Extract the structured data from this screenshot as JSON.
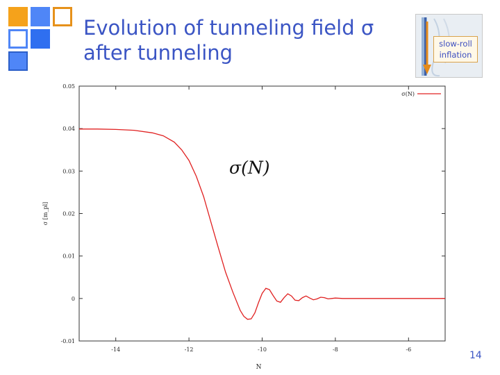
{
  "slide": {
    "title_line1": "Evolution of tunneling field σ",
    "title_line2": "after tunneling",
    "page_number": "14",
    "accent_colors": [
      "#f5a21b",
      "#4f86f7",
      "#2f6ff0",
      "#e6911a"
    ]
  },
  "thumbnail": {
    "label_line1": "slow-roll",
    "label_line2": "inflation",
    "icons": [
      "down-arrow-icon"
    ]
  },
  "chart_data": {
    "type": "line",
    "title": "",
    "annotation": "σ(N)",
    "xlabel": "N",
    "ylabel": "σ [m_pl]",
    "xlim": [
      -15,
      -5
    ],
    "ylim": [
      -0.01,
      0.05
    ],
    "xticks": [
      -14,
      -12,
      -10,
      -8,
      -6
    ],
    "yticks": [
      -0.01,
      0,
      0.01,
      0.02,
      0.03,
      0.04,
      0.05
    ],
    "ytick_labels": [
      "-0.01",
      "0",
      "0.01",
      "0.02",
      "0.03",
      "0.04",
      "0.05"
    ],
    "grid": false,
    "legend": "top-right",
    "series": [
      {
        "name": "σ(N)",
        "color": "#e02020",
        "x": [
          -15.0,
          -14.5,
          -14.0,
          -13.5,
          -13.0,
          -12.7,
          -12.4,
          -12.2,
          -12.0,
          -11.8,
          -11.6,
          -11.4,
          -11.2,
          -11.0,
          -10.8,
          -10.6,
          -10.5,
          -10.4,
          -10.3,
          -10.2,
          -10.1,
          -10.0,
          -9.9,
          -9.8,
          -9.7,
          -9.6,
          -9.5,
          -9.4,
          -9.3,
          -9.2,
          -9.1,
          -9.0,
          -8.9,
          -8.8,
          -8.7,
          -8.6,
          -8.5,
          -8.4,
          -8.3,
          -8.2,
          -8.1,
          -8.0,
          -7.8,
          -7.5,
          -7.0,
          -6.0,
          -5.0
        ],
        "y": [
          0.0399,
          0.0399,
          0.0398,
          0.0396,
          0.039,
          0.0383,
          0.0368,
          0.035,
          0.0325,
          0.0288,
          0.024,
          0.018,
          0.012,
          0.0062,
          0.0015,
          -0.0028,
          -0.0042,
          -0.0049,
          -0.0048,
          -0.0034,
          -0.001,
          0.0012,
          0.0024,
          0.0021,
          0.0007,
          -0.0006,
          -0.0009,
          0.0002,
          0.0011,
          0.0006,
          -0.0004,
          -0.0005,
          0.0002,
          0.0006,
          0.0001,
          -0.0003,
          -0.0001,
          0.0003,
          0.0002,
          -0.0001,
          0.0,
          0.0001,
          0.0,
          0.0,
          0.0,
          0.0,
          0.0
        ]
      }
    ]
  }
}
